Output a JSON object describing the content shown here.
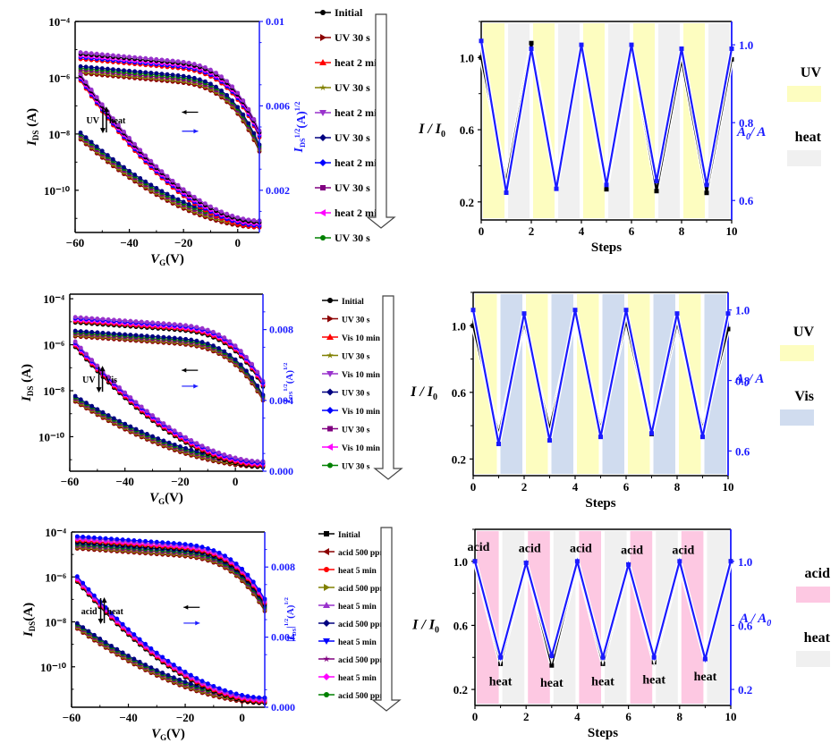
{
  "colors": {
    "uv_band": "#fdfdc0",
    "heat_band": "#f0f0f0",
    "vis_band": "#d0dcef",
    "acid_band": "#fdc8e2",
    "right_axis": "#1a1aff",
    "left_axis": "#000000"
  },
  "chart_data": [
    {
      "id": "transfer_uv_heat",
      "type": "line",
      "xlabel": "V_G(V)",
      "ylabel": "I_DS (A)",
      "y2label": "I_DS^1/2(A)^1/2",
      "xlim": [
        -60,
        8
      ],
      "xticks": [
        "−60",
        "−40",
        "−20",
        "0"
      ],
      "xtick_values": [
        -60,
        -40,
        -20,
        0
      ],
      "ylim_log": [
        -11.5,
        -4
      ],
      "yticks": [
        "10⁻⁴",
        "10⁻⁶",
        "10⁻⁸",
        "10⁻¹⁰"
      ],
      "ytick_values": [
        -4,
        -6,
        -8,
        -10
      ],
      "y2lim": [
        0,
        0.01
      ],
      "y2ticks": [
        "0.01",
        "0.006",
        "0.002"
      ],
      "y2tick_values": [
        0.01,
        0.006,
        0.002
      ],
      "annotation_left": "UV",
      "annotation_right": "heat",
      "legend": [
        {
          "name": "Initial",
          "color": "#000000",
          "marker": "circle"
        },
        {
          "name": "UV 30 s",
          "color": "#8b0000",
          "marker": "triangle-right"
        },
        {
          "name": "heat 2 min",
          "color": "#ff0000",
          "marker": "triangle-up"
        },
        {
          "name": "UV 30 s",
          "color": "#808000",
          "marker": "star"
        },
        {
          "name": "heat 2 min",
          "color": "#9932cc",
          "marker": "triangle-down"
        },
        {
          "name": "UV 30 s",
          "color": "#000080",
          "marker": "diamond"
        },
        {
          "name": "heat 2 min",
          "color": "#0000ff",
          "marker": "diamond"
        },
        {
          "name": "UV 30 s",
          "color": "#800080",
          "marker": "square"
        },
        {
          "name": "heat 2 min",
          "color": "#ff00ff",
          "marker": "triangle-left"
        },
        {
          "name": "UV 30 s",
          "color": "#008000",
          "marker": "circle"
        }
      ],
      "curve_groups": {
        "heat_log": {
          "start": -5.2,
          "subth_start": -5.7,
          "colors": [
            "#ff0000",
            "#0000ff",
            "#ff00ff",
            "#000000",
            "#9932cc"
          ]
        },
        "uv_log": {
          "start": -5.7,
          "subth_start": -7.9,
          "colors": [
            "#8b0000",
            "#808000",
            "#800080",
            "#008000",
            "#000080"
          ]
        }
      }
    },
    {
      "id": "cycle_uv_heat",
      "type": "line",
      "xlabel": "Steps",
      "ylabel": "I / I_0",
      "y2label": "A_0/ A",
      "xlim": [
        0,
        10
      ],
      "xticks": [
        "0",
        "2",
        "4",
        "6",
        "8",
        "10"
      ],
      "ylim": [
        0.1,
        1.2
      ],
      "yticks": [
        "1.0",
        "0.6",
        "0.2"
      ],
      "ytick_values": [
        1.0,
        0.6,
        0.2
      ],
      "y2lim": [
        0.55,
        1.06
      ],
      "y2ticks": [
        "1.0",
        "0.8",
        "0.6"
      ],
      "y2tick_values": [
        1.0,
        0.8,
        0.6
      ],
      "bands": [
        "UV",
        "heat",
        "UV",
        "heat",
        "UV",
        "heat",
        "UV",
        "heat",
        "UV",
        "heat"
      ],
      "legend": [
        {
          "name": "UV",
          "band": "uv"
        },
        {
          "name": "heat",
          "band": "heat"
        }
      ],
      "x": [
        0,
        1,
        2,
        3,
        4,
        5,
        6,
        7,
        8,
        9,
        10
      ],
      "series": [
        {
          "name": "I/I0",
          "axis": "left",
          "color": "#000000",
          "values": [
            1.0,
            0.31,
            1.08,
            0.3,
            1.05,
            0.27,
            1.05,
            0.26,
            0.99,
            0.25,
            0.99
          ]
        },
        {
          "name": "A0/A",
          "axis": "right",
          "color": "#1a1aff",
          "values": [
            1.01,
            0.62,
            0.99,
            0.63,
            1.0,
            0.64,
            1.0,
            0.65,
            0.99,
            0.64,
            0.99
          ]
        }
      ]
    },
    {
      "id": "transfer_uv_vis",
      "type": "line",
      "xlabel": "V_G(V)",
      "ylabel": "I_DS (A)",
      "y2label": "I_DS^1/2(A)^1/2",
      "xlim": [
        -60,
        10
      ],
      "xticks": [
        "−60",
        "−40",
        "−20",
        "0"
      ],
      "xtick_values": [
        -60,
        -40,
        -20,
        0
      ],
      "ylim_log": [
        -11.5,
        -3.8
      ],
      "yticks": [
        "10⁻⁴",
        "10⁻⁶",
        "10⁻⁸",
        "10⁻¹⁰"
      ],
      "ytick_values": [
        -4,
        -6,
        -8,
        -10
      ],
      "y2lim": [
        0,
        0.01
      ],
      "y2ticks": [
        "0.008",
        "0.004",
        "0.000"
      ],
      "y2tick_values": [
        0.008,
        0.004,
        0.0
      ],
      "annotation_left": "UV",
      "annotation_right": "Vis",
      "legend": [
        {
          "name": "Initial",
          "color": "#000000",
          "marker": "circle"
        },
        {
          "name": "UV 30 s",
          "color": "#8b0000",
          "marker": "triangle-right"
        },
        {
          "name": "Vis 10 min",
          "color": "#ff0000",
          "marker": "triangle-up"
        },
        {
          "name": "UV 30 s",
          "color": "#808000",
          "marker": "star"
        },
        {
          "name": "Vis  10 min",
          "color": "#9932cc",
          "marker": "triangle-down"
        },
        {
          "name": "UV  30 s",
          "color": "#000080",
          "marker": "diamond"
        },
        {
          "name": "Vis  10 min",
          "color": "#0000ff",
          "marker": "diamond"
        },
        {
          "name": "UV  30 s",
          "color": "#800080",
          "marker": "square"
        },
        {
          "name": "Vis  10 min",
          "color": "#ff00ff",
          "marker": "triangle-left"
        },
        {
          "name": "UV  30 s",
          "color": "#008000",
          "marker": "circle"
        }
      ],
      "curve_groups": {
        "heat_log": {
          "start": -4.9,
          "subth_start": -5.7,
          "colors": [
            "#000000",
            "#ff0000",
            "#ff00ff",
            "#0000ff",
            "#9932cc"
          ]
        },
        "uv_log": {
          "start": -5.5,
          "subth_start": -8.2,
          "colors": [
            "#8b0000",
            "#808000",
            "#800080",
            "#008000",
            "#000080"
          ]
        }
      }
    },
    {
      "id": "cycle_uv_vis",
      "type": "line",
      "xlabel": "Steps",
      "ylabel": "I / I_0",
      "y2label": "A_0/ A",
      "xlim": [
        0,
        10
      ],
      "xticks": [
        "0",
        "2",
        "4",
        "6",
        "8",
        "10"
      ],
      "ylim": [
        0.1,
        1.2
      ],
      "yticks": [
        "1.0",
        "0.6",
        "0.2"
      ],
      "ytick_values": [
        1.0,
        0.6,
        0.2
      ],
      "y2lim": [
        0.53,
        1.05
      ],
      "y2ticks": [
        "1.0",
        "0.8",
        "0.6"
      ],
      "y2tick_values": [
        1.0,
        0.8,
        0.6
      ],
      "bands": [
        "UV",
        "Vis",
        "UV",
        "Vis",
        "UV",
        "Vis",
        "UV",
        "Vis",
        "UV",
        "Vis"
      ],
      "legend": [
        {
          "name": "UV",
          "band": "uv"
        },
        {
          "name": "Vis",
          "band": "vis"
        }
      ],
      "x": [
        0,
        1,
        2,
        3,
        4,
        5,
        6,
        7,
        8,
        9,
        10
      ],
      "series": [
        {
          "name": "I/I0",
          "axis": "left",
          "color": "#000000",
          "values": [
            1.0,
            0.35,
            1.02,
            0.38,
            1.06,
            0.38,
            1.03,
            0.35,
            1.02,
            0.38,
            0.98
          ]
        },
        {
          "name": "A0/A",
          "axis": "right",
          "color": "#1a1aff",
          "values": [
            1.0,
            0.62,
            0.99,
            0.63,
            1.0,
            0.64,
            1.0,
            0.65,
            0.99,
            0.64,
            0.99
          ]
        }
      ]
    },
    {
      "id": "transfer_acid_heat",
      "type": "line",
      "xlabel": "V_G(V)",
      "ylabel": "I_DS(A)",
      "y2label": "|I_DS|^1/2(A)^1/2",
      "xlim": [
        -60,
        8
      ],
      "xticks": [
        "−60",
        "−40",
        "−20",
        "0"
      ],
      "xtick_values": [
        -60,
        -40,
        -20,
        0
      ],
      "ylim_log": [
        -11.8,
        -4
      ],
      "yticks": [
        "10⁻⁴",
        "10⁻⁶",
        "10⁻⁸",
        "10⁻¹⁰"
      ],
      "ytick_values": [
        -4,
        -6,
        -8,
        -10
      ],
      "y2lim": [
        0,
        0.01
      ],
      "y2ticks": [
        "0.008",
        "0.004",
        "0.000"
      ],
      "y2tick_values": [
        0.008,
        0.004,
        0.0
      ],
      "annotation_left": "acid",
      "annotation_right": "heat",
      "legend": [
        {
          "name": "Initial",
          "color": "#000000",
          "marker": "square"
        },
        {
          "name": "acid 500 ppm",
          "color": "#8b0000",
          "marker": "triangle-left"
        },
        {
          "name": "heat 5 min",
          "color": "#ff0000",
          "marker": "circle"
        },
        {
          "name": "acid 500 ppm",
          "color": "#808000",
          "marker": "triangle-right"
        },
        {
          "name": "heat 5 min",
          "color": "#9932cc",
          "marker": "triangle-up"
        },
        {
          "name": "acid 500 ppm",
          "color": "#000080",
          "marker": "diamond"
        },
        {
          "name": "heat 5 min",
          "color": "#0000ff",
          "marker": "triangle-down"
        },
        {
          "name": "acid 500 ppm",
          "color": "#800080",
          "marker": "star"
        },
        {
          "name": "heat 5 min",
          "color": "#ff00ff",
          "marker": "diamond"
        },
        {
          "name": "acid 500 ppm",
          "color": "#008000",
          "marker": "circle"
        }
      ],
      "curve_groups": {
        "heat_log": {
          "start": -4.3,
          "subth_start": -5.8,
          "colors": [
            "#000000",
            "#ff0000",
            "#ff00ff",
            "#9932cc",
            "#0000ff"
          ]
        },
        "uv_log": {
          "start": -4.6,
          "subth_start": -8.0,
          "colors": [
            "#8b0000",
            "#808000",
            "#800080",
            "#008000",
            "#000080"
          ]
        }
      }
    },
    {
      "id": "cycle_acid_heat",
      "type": "line",
      "xlabel": "Steps",
      "ylabel": "I / I_0",
      "y2label": "A / A_0",
      "xlim": [
        0,
        10
      ],
      "xticks": [
        "0",
        "2",
        "4",
        "6",
        "8",
        "10"
      ],
      "ylim": [
        0.1,
        1.2
      ],
      "yticks": [
        "1.0",
        "0.6",
        "0.2"
      ],
      "ytick_values": [
        1.0,
        0.6,
        0.2
      ],
      "y2lim": [
        0.1,
        1.2
      ],
      "y2ticks": [
        "1.0",
        "0.6",
        "0.2"
      ],
      "y2tick_values": [
        1.0,
        0.6,
        0.2
      ],
      "bands": [
        "acid",
        "heat",
        "acid",
        "heat",
        "acid",
        "heat",
        "acid",
        "heat",
        "acid",
        "heat"
      ],
      "legend": [
        {
          "name": "acid",
          "band": "acid"
        },
        {
          "name": "heat",
          "band": "heat"
        }
      ],
      "point_labels": [
        "acid",
        "heat",
        "acid",
        "heat",
        "acid",
        "heat",
        "acid",
        "heat",
        "acid",
        "heat"
      ],
      "x": [
        0,
        1,
        2,
        3,
        4,
        5,
        6,
        7,
        8,
        9,
        10
      ],
      "series": [
        {
          "name": "I/I0",
          "axis": "left",
          "color": "#000000",
          "values": [
            1.0,
            0.36,
            0.99,
            0.35,
            0.99,
            0.36,
            0.98,
            0.37,
            0.98,
            0.39,
            1.0
          ]
        },
        {
          "name": "A/A0",
          "axis": "right",
          "color": "#1a1aff",
          "values": [
            1.0,
            0.4,
            0.99,
            0.41,
            1.0,
            0.4,
            0.98,
            0.4,
            1.0,
            0.39,
            1.0
          ]
        }
      ]
    }
  ]
}
